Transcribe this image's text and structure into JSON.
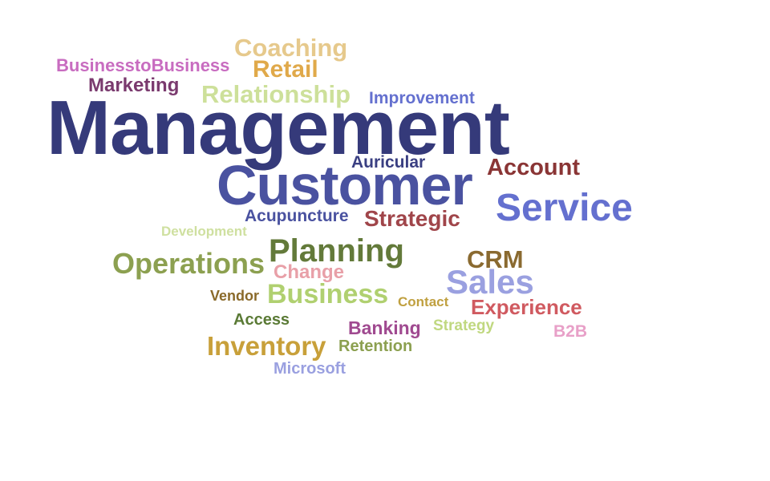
{
  "words": [
    {
      "id": "management",
      "text": "Management",
      "color": "#353a7a"
    },
    {
      "id": "customer",
      "text": "Customer",
      "color": "#4a52a0"
    },
    {
      "id": "service",
      "text": "Service",
      "color": "#6470cf"
    },
    {
      "id": "coaching",
      "text": "Coaching",
      "color": "#e6c98c"
    },
    {
      "id": "retail",
      "text": "Retail",
      "color": "#e0a94a"
    },
    {
      "id": "b2b-long",
      "text": "BusinesstoBusiness",
      "color": "#c86cc0"
    },
    {
      "id": "marketing",
      "text": "Marketing",
      "color": "#7a3a6e"
    },
    {
      "id": "relationship",
      "text": "Relationship",
      "color": "#cde09a"
    },
    {
      "id": "improvement",
      "text": "Improvement",
      "color": "#6470cf"
    },
    {
      "id": "auricular",
      "text": "Auricular",
      "color": "#3a3f82"
    },
    {
      "id": "account",
      "text": "Account",
      "color": "#8a3535"
    },
    {
      "id": "acupuncture",
      "text": "Acupuncture",
      "color": "#4a52a0"
    },
    {
      "id": "strategic",
      "text": "Strategic",
      "color": "#a0454a"
    },
    {
      "id": "development",
      "text": "Development",
      "color": "#cfe0a0"
    },
    {
      "id": "planning",
      "text": "Planning",
      "color": "#637a3a"
    },
    {
      "id": "operations",
      "text": "Operations",
      "color": "#8ca050"
    },
    {
      "id": "change",
      "text": "Change",
      "color": "#e8a0a8"
    },
    {
      "id": "crm",
      "text": "CRM",
      "color": "#8a6a30"
    },
    {
      "id": "sales",
      "text": "Sales",
      "color": "#9aa0e0"
    },
    {
      "id": "vendor",
      "text": "Vendor",
      "color": "#8a6a2a"
    },
    {
      "id": "business",
      "text": "Business",
      "color": "#b0d070"
    },
    {
      "id": "contact",
      "text": "Contact",
      "color": "#c0a040"
    },
    {
      "id": "experience",
      "text": "Experience",
      "color": "#d05a60"
    },
    {
      "id": "access",
      "text": "Access",
      "color": "#5a7a35"
    },
    {
      "id": "banking",
      "text": "Banking",
      "color": "#a04a90"
    },
    {
      "id": "strategy",
      "text": "Strategy",
      "color": "#c0d880"
    },
    {
      "id": "b2b",
      "text": "B2B",
      "color": "#e8a0c8"
    },
    {
      "id": "inventory",
      "text": "Inventory",
      "color": "#c8a03a"
    },
    {
      "id": "retention",
      "text": "Retention",
      "color": "#8ca050"
    },
    {
      "id": "microsoft",
      "text": "Microsoft",
      "color": "#9aa0e0"
    }
  ]
}
